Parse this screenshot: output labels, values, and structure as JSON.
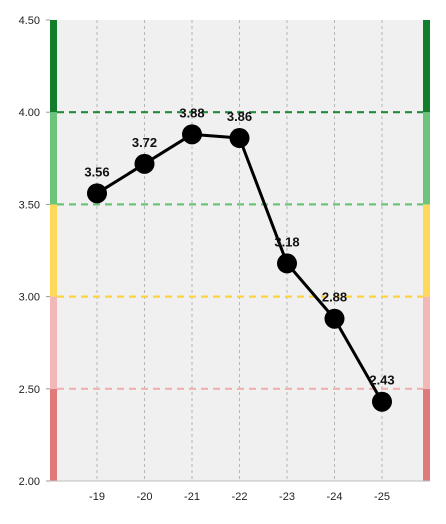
{
  "chart_data": {
    "type": "line",
    "categories": [
      "-19",
      "-20",
      "-21",
      "-22",
      "-23",
      "-24",
      "-25"
    ],
    "series": [
      {
        "values": [
          3.56,
          3.72,
          3.88,
          3.86,
          3.18,
          2.88,
          2.43
        ]
      }
    ],
    "data_labels": [
      "3.56",
      "3.72",
      "3.88",
      "3.86",
      "3.18",
      "2.88",
      "2.43"
    ],
    "y_ticks": [
      "2.00",
      "2.50",
      "3.00",
      "3.50",
      "4.00",
      "4.50"
    ],
    "ylim": [
      2.0,
      4.5
    ],
    "title": "",
    "xlabel": "",
    "ylabel": "",
    "grid": "vertical dashed",
    "bands": [
      {
        "from": 2.0,
        "to": 2.5,
        "color": "#e07a7a"
      },
      {
        "from": 2.5,
        "to": 3.0,
        "color": "#f2b8b8"
      },
      {
        "from": 3.0,
        "to": 3.5,
        "color": "#ffd95a"
      },
      {
        "from": 3.5,
        "to": 4.0,
        "color": "#6cc47a"
      },
      {
        "from": 4.0,
        "to": 4.5,
        "color": "#127d2b"
      }
    ],
    "thresholds": [
      {
        "value": 2.5,
        "color": "#f2b0b0"
      },
      {
        "value": 3.0,
        "color": "#ffd43b"
      },
      {
        "value": 3.5,
        "color": "#6cc47a"
      },
      {
        "value": 4.0,
        "color": "#1e8a3a"
      }
    ],
    "plot_background": "#f0f0f0",
    "line_color": "#000000",
    "marker_color": "#000000"
  }
}
